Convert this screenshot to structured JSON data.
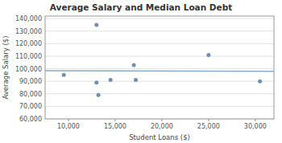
{
  "chart_data": {
    "type": "scatter",
    "title": "Average Salary and Median Loan Debt",
    "xlabel": "Student Loans ($)",
    "ylabel": "Average Salary ($)",
    "series": [
      {
        "type": "scatter",
        "color": "#7090b0",
        "x": [
          9500,
          13000,
          13000,
          13200,
          14500,
          17000,
          17200,
          25000,
          30500
        ],
        "values": [
          95000,
          135000,
          89000,
          79000,
          91000,
          103000,
          91000,
          111000,
          90000
        ]
      },
      {
        "type": "line",
        "color": "#88aac8",
        "x": [
          7500,
          32000
        ],
        "values": [
          98360.5,
          98003.4
        ]
      }
    ],
    "xlim": [
      7500,
      32000
    ],
    "ylim": [
      60000,
      142000
    ],
    "xticks": [
      {
        "value": 10000,
        "label": "10,000"
      },
      {
        "value": 15000,
        "label": "15,000"
      },
      {
        "value": 20000,
        "label": "20,000"
      },
      {
        "value": 25000,
        "label": "25,000"
      },
      {
        "value": 30000,
        "label": "30,000"
      }
    ],
    "yticks": [
      {
        "value": 60000,
        "label": "60,000"
      },
      {
        "value": 70000,
        "label": "70,000"
      },
      {
        "value": 80000,
        "label": "80,000"
      },
      {
        "value": 90000,
        "label": "90,000"
      },
      {
        "value": 100000,
        "label": "100,000"
      },
      {
        "value": 110000,
        "label": "110,000"
      },
      {
        "value": 120000,
        "label": "120,000"
      },
      {
        "value": 130000,
        "label": "130,000"
      },
      {
        "value": 140000,
        "label": "140,000"
      }
    ],
    "grid": "y"
  }
}
